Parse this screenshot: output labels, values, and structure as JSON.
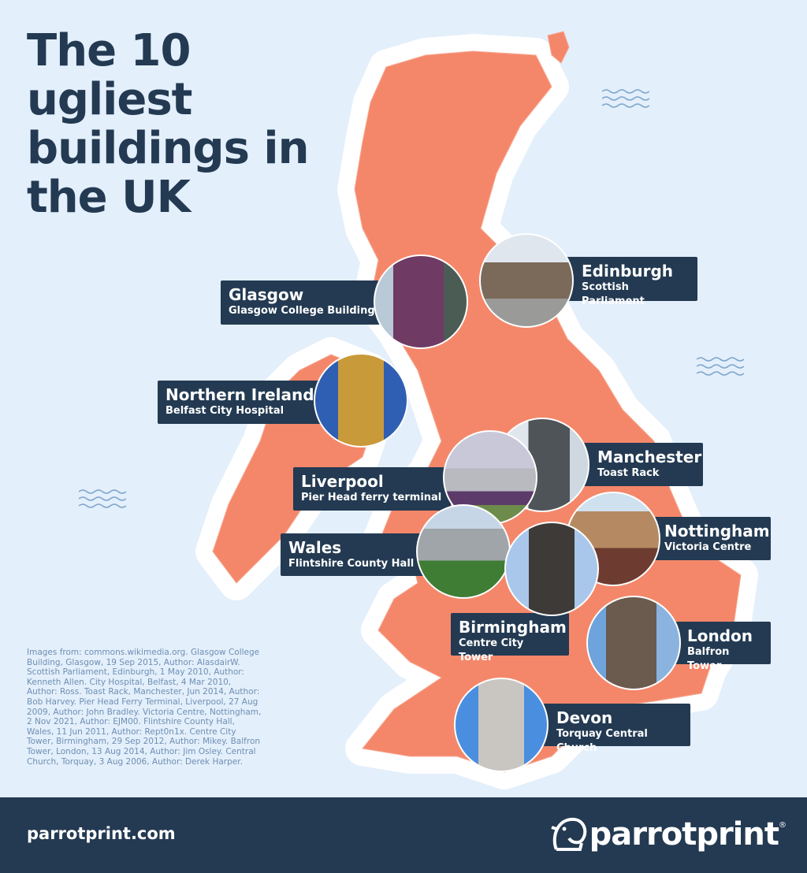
{
  "title": "The 10 ugliest buildings in the UK",
  "colors": {
    "background": "#e3effb",
    "map": "#f4876a",
    "label": "#233a52",
    "footer": "#233a52"
  },
  "locations": [
    {
      "city": "Glasgow",
      "building": "Glasgow College Building"
    },
    {
      "city": "Edinburgh",
      "building": "Scottish Parliament"
    },
    {
      "city": "Northern Ireland",
      "building": "Belfast City Hospital"
    },
    {
      "city": "Manchester",
      "building": "Toast Rack"
    },
    {
      "city": "Liverpool",
      "building": "Pier Head ferry terminal"
    },
    {
      "city": "Nottingham",
      "building": "Victoria Centre"
    },
    {
      "city": "Wales",
      "building": "Flintshire County Hall"
    },
    {
      "city": "Birmingham",
      "building": "Centre City Tower"
    },
    {
      "city": "London",
      "building": "Balfron Tower"
    },
    {
      "city": "Devon",
      "building": "Torquay Central Church"
    }
  ],
  "credits": "Images from: commons.wikimedia.org. Glasgow College Building, Glasgow, 19 Sep 2015, Author: AlasdairW.  Scottish Parliament, Edinburgh, 1 May 2010, Author: Kenneth Allen. City Hospital, Belfast, 4 Mar 2010, Author: Ross. Toast Rack, Manchester, Jun 2014, Author: Bob Harvey. Pier Head Ferry Terminal, Liverpool, 27 Aug 2009, Author: John Bradley. Victoria Centre, Nottingham, 2 Nov 2021, Author: EJM00. Flintshire County Hall, Wales, 11 Jun 2011, Author: Rept0n1x. Centre City Tower, Birmingham, 29 Sep 2012, Author: Mikey. Balfron Tower, London, 13 Aug 2014, Author: Jim Osley. Central Church, Torquay, 3 Aug 2006, Author: Derek Harper.",
  "footer": {
    "website": "parrotprint.com",
    "brand": "parrotprint",
    "brand_mark": "®"
  }
}
